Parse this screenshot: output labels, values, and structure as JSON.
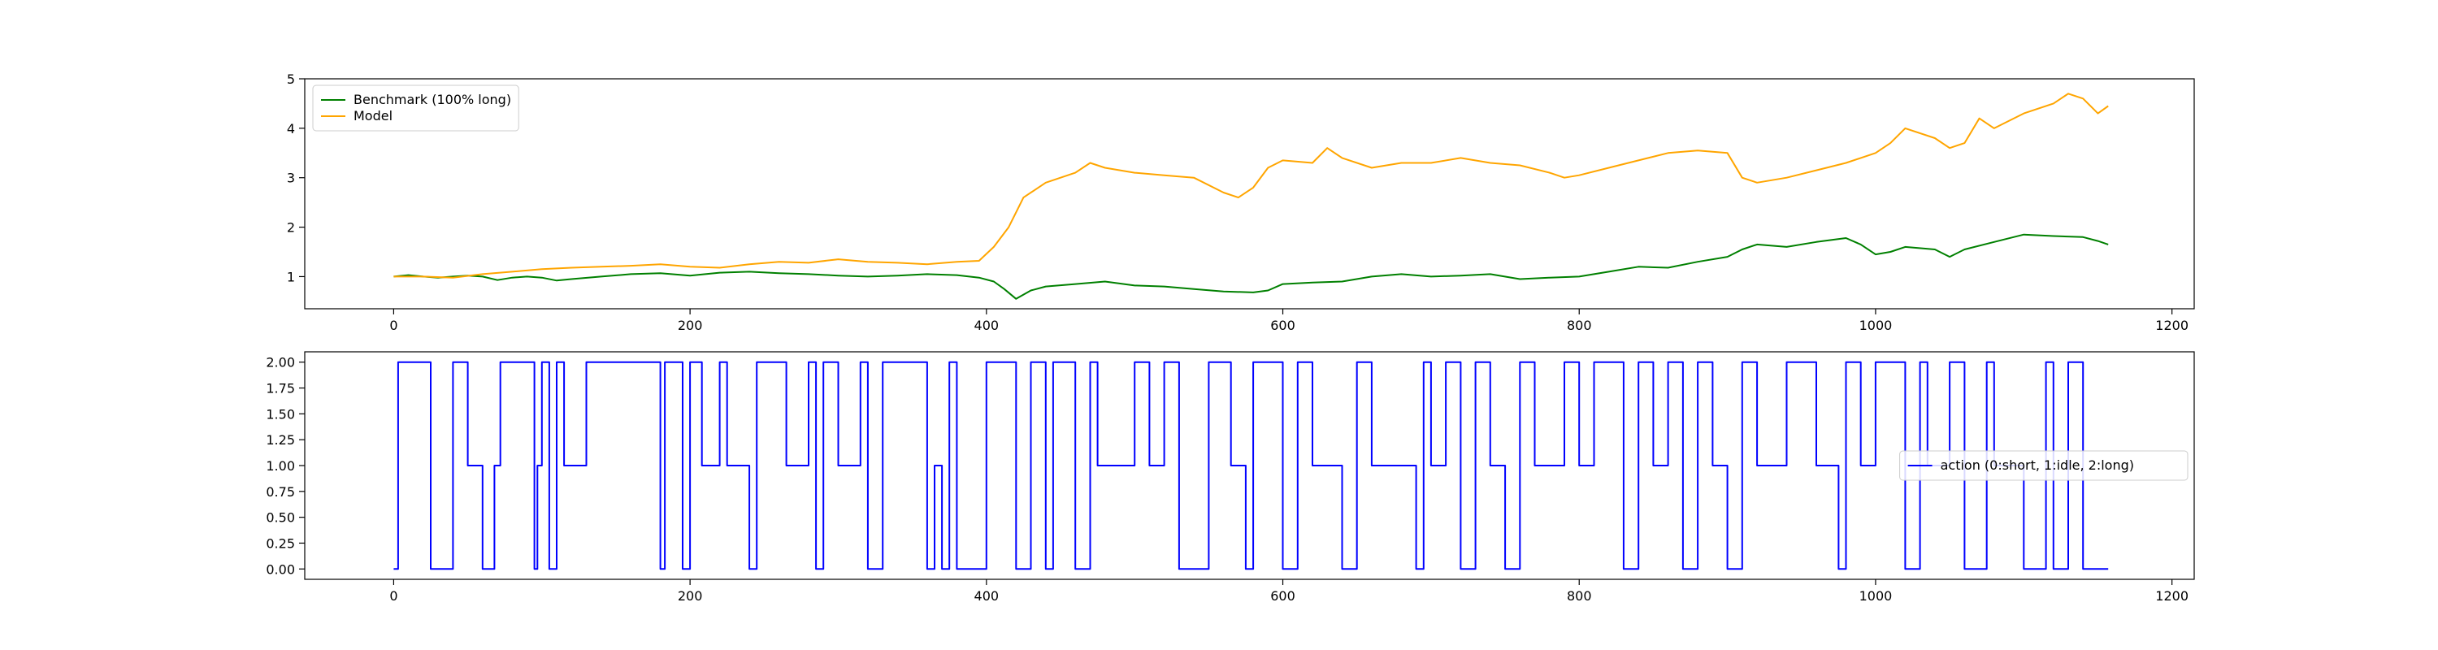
{
  "chart_data": [
    {
      "type": "line",
      "title": "",
      "xlabel": "",
      "ylabel": "",
      "xlim": [
        -60,
        1215
      ],
      "ylim": [
        0.35,
        5.0
      ],
      "xticks": [
        0,
        200,
        400,
        600,
        800,
        1000,
        1200
      ],
      "yticks": [
        1,
        2,
        3,
        4,
        5
      ],
      "grid": false,
      "legend_position": "upper-left",
      "series": [
        {
          "name": "Benchmark (100% long)",
          "color": "#008000",
          "x": [
            0,
            10,
            20,
            30,
            40,
            50,
            60,
            70,
            80,
            90,
            100,
            110,
            120,
            140,
            160,
            180,
            200,
            220,
            240,
            260,
            280,
            300,
            320,
            340,
            360,
            380,
            395,
            405,
            412,
            420,
            430,
            440,
            460,
            480,
            500,
            520,
            540,
            560,
            580,
            590,
            600,
            620,
            640,
            660,
            680,
            700,
            720,
            740,
            760,
            780,
            800,
            820,
            840,
            860,
            880,
            900,
            910,
            920,
            940,
            960,
            980,
            990,
            1000,
            1010,
            1020,
            1040,
            1050,
            1060,
            1080,
            1100,
            1120,
            1140,
            1150,
            1157
          ],
          "y": [
            1.0,
            1.03,
            1.0,
            0.98,
            1.0,
            1.02,
            1.0,
            0.93,
            0.98,
            1.0,
            0.98,
            0.92,
            0.95,
            1.0,
            1.05,
            1.07,
            1.02,
            1.08,
            1.1,
            1.07,
            1.05,
            1.02,
            1.0,
            1.02,
            1.05,
            1.03,
            0.98,
            0.9,
            0.75,
            0.55,
            0.72,
            0.8,
            0.85,
            0.9,
            0.82,
            0.8,
            0.75,
            0.7,
            0.68,
            0.72,
            0.85,
            0.88,
            0.9,
            1.0,
            1.05,
            1.0,
            1.02,
            1.05,
            0.95,
            0.98,
            1.0,
            1.1,
            1.2,
            1.18,
            1.3,
            1.4,
            1.55,
            1.65,
            1.6,
            1.7,
            1.78,
            1.65,
            1.45,
            1.5,
            1.6,
            1.55,
            1.4,
            1.55,
            1.7,
            1.85,
            1.82,
            1.8,
            1.72,
            1.65
          ]
        },
        {
          "name": "Model",
          "color": "#FFA500",
          "x": [
            0,
            20,
            40,
            60,
            80,
            100,
            120,
            140,
            160,
            180,
            200,
            220,
            240,
            260,
            280,
            300,
            320,
            340,
            360,
            380,
            395,
            405,
            415,
            425,
            440,
            460,
            470,
            480,
            500,
            520,
            540,
            560,
            570,
            580,
            590,
            600,
            620,
            630,
            640,
            660,
            680,
            700,
            720,
            740,
            760,
            780,
            790,
            800,
            820,
            840,
            860,
            880,
            900,
            910,
            920,
            940,
            960,
            980,
            1000,
            1010,
            1020,
            1040,
            1050,
            1060,
            1070,
            1080,
            1100,
            1120,
            1130,
            1140,
            1150,
            1157
          ],
          "y": [
            1.0,
            1.0,
            0.98,
            1.05,
            1.1,
            1.15,
            1.18,
            1.2,
            1.22,
            1.25,
            1.2,
            1.18,
            1.25,
            1.3,
            1.28,
            1.35,
            1.3,
            1.28,
            1.25,
            1.3,
            1.32,
            1.6,
            2.0,
            2.6,
            2.9,
            3.1,
            3.3,
            3.2,
            3.1,
            3.05,
            3.0,
            2.7,
            2.6,
            2.8,
            3.2,
            3.35,
            3.3,
            3.6,
            3.4,
            3.2,
            3.3,
            3.3,
            3.4,
            3.3,
            3.25,
            3.1,
            3.0,
            3.05,
            3.2,
            3.35,
            3.5,
            3.55,
            3.5,
            3.0,
            2.9,
            3.0,
            3.15,
            3.3,
            3.5,
            3.7,
            4.0,
            3.8,
            3.6,
            3.7,
            4.2,
            4.0,
            4.3,
            4.5,
            4.7,
            4.6,
            4.3,
            4.45
          ]
        }
      ]
    },
    {
      "type": "line",
      "step": true,
      "title": "",
      "xlabel": "",
      "ylabel": "",
      "xlim": [
        -60,
        1215
      ],
      "ylim": [
        -0.1,
        2.1
      ],
      "xticks": [
        0,
        200,
        400,
        600,
        800,
        1000,
        1200
      ],
      "xtick_labels": [
        "0",
        "200",
        "400",
        "600",
        "800",
        "1000",
        "1200"
      ],
      "yticks": [
        0.0,
        0.25,
        0.5,
        0.75,
        1.0,
        1.25,
        1.5,
        1.75,
        2.0
      ],
      "ytick_labels": [
        "0.00",
        "0.25",
        "0.50",
        "0.75",
        "1.00",
        "1.25",
        "1.50",
        "1.75",
        "2.00"
      ],
      "grid": false,
      "legend_position": "center-right",
      "series": [
        {
          "name": "action (0:short, 1:idle, 2:long)",
          "color": "#0000FF",
          "x": [
            0,
            3,
            25,
            40,
            50,
            60,
            68,
            72,
            95,
            97,
            100,
            105,
            110,
            115,
            130,
            140,
            180,
            183,
            195,
            200,
            208,
            220,
            225,
            240,
            245,
            265,
            280,
            285,
            290,
            300,
            315,
            320,
            330,
            360,
            365,
            370,
            375,
            380,
            400,
            420,
            430,
            440,
            445,
            460,
            470,
            475,
            500,
            510,
            520,
            530,
            550,
            565,
            575,
            580,
            600,
            610,
            620,
            640,
            650,
            660,
            690,
            695,
            700,
            710,
            720,
            730,
            740,
            750,
            760,
            770,
            790,
            800,
            810,
            830,
            840,
            850,
            860,
            870,
            880,
            890,
            900,
            910,
            920,
            940,
            960,
            975,
            980,
            990,
            1000,
            1020,
            1030,
            1035,
            1050,
            1060,
            1075,
            1080,
            1100,
            1115,
            1120,
            1130,
            1140,
            1157
          ],
          "y": [
            0,
            2,
            0,
            2,
            1,
            0,
            1,
            2,
            0,
            1,
            2,
            0,
            2,
            1,
            2,
            2,
            0,
            2,
            0,
            2,
            1,
            2,
            1,
            0,
            2,
            1,
            2,
            0,
            2,
            1,
            2,
            0,
            2,
            0,
            1,
            0,
            2,
            0,
            2,
            0,
            2,
            0,
            2,
            0,
            2,
            1,
            2,
            1,
            2,
            0,
            2,
            1,
            0,
            2,
            0,
            2,
            1,
            0,
            2,
            1,
            0,
            2,
            1,
            2,
            0,
            2,
            1,
            0,
            2,
            1,
            2,
            1,
            2,
            0,
            2,
            1,
            2,
            0,
            2,
            1,
            0,
            2,
            1,
            2,
            1,
            0,
            2,
            1,
            2,
            0,
            2,
            1,
            2,
            0,
            2,
            1,
            0,
            2,
            0,
            2,
            0,
            0
          ]
        }
      ]
    }
  ]
}
